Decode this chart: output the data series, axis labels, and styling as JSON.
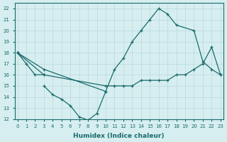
{
  "xlabel": "Humidex (Indice chaleur)",
  "bg_color": "#d6eef0",
  "grid_color": "#b8d8dc",
  "line_color": "#1a6b6b",
  "xticks": [
    0,
    1,
    2,
    3,
    4,
    5,
    6,
    7,
    8,
    9,
    10,
    11,
    12,
    13,
    14,
    15,
    16,
    17,
    18,
    19,
    20,
    21,
    22,
    23
  ],
  "yticks": [
    12,
    13,
    14,
    15,
    16,
    17,
    18,
    19,
    20,
    21,
    22
  ],
  "xlim": [
    -0.3,
    23.3
  ],
  "ylim": [
    12,
    22.5
  ],
  "lines": [
    {
      "x": [
        0,
        1,
        2,
        3
      ],
      "y": [
        18.0,
        17.0,
        16.0,
        16.0
      ]
    },
    {
      "x": [
        3,
        4,
        5,
        6,
        7,
        8,
        9,
        10
      ],
      "y": [
        15.0,
        14.2,
        13.8,
        13.2,
        12.2,
        11.9,
        12.5,
        14.5
      ]
    },
    {
      "x": [
        0,
        3,
        10,
        11,
        12,
        13,
        14,
        15,
        16,
        17,
        18,
        19,
        20,
        21,
        22,
        23
      ],
      "y": [
        18.0,
        16.0,
        15.0,
        15.0,
        15.0,
        15.0,
        15.5,
        15.5,
        15.5,
        15.5,
        16.0,
        16.0,
        16.5,
        17.0,
        18.5,
        16.0
      ]
    },
    {
      "x": [
        0,
        3,
        10,
        11,
        12,
        13,
        14,
        15,
        16,
        17,
        18,
        20,
        21,
        22,
        23
      ],
      "y": [
        18.0,
        16.5,
        14.5,
        16.5,
        17.5,
        19.0,
        20.0,
        21.0,
        22.0,
        21.5,
        20.5,
        20.0,
        17.2,
        16.5,
        16.0
      ]
    }
  ]
}
